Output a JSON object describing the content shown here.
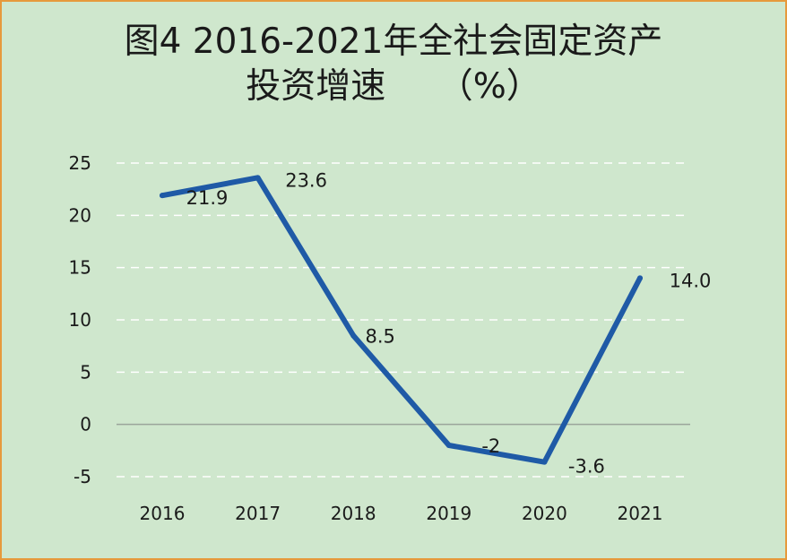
{
  "title_line1": "图4 2016-2021年全社会固定资产",
  "title_line2": "投资增速　　（%）",
  "colors": {
    "line": "#1f5aa6",
    "background": "#cfe7cd",
    "border": "#e69a3c",
    "grid": "#ffffff"
  },
  "chart_data": {
    "type": "line",
    "categories": [
      "2016",
      "2017",
      "2018",
      "2019",
      "2020",
      "2021"
    ],
    "values": [
      21.9,
      23.6,
      8.5,
      -2,
      -3.6,
      14.0
    ],
    "data_labels": [
      "21.9",
      "23.6",
      "8.5",
      "-2",
      "-3.6",
      "14.0"
    ],
    "yticks": [
      "-5",
      "0",
      "5",
      "10",
      "15",
      "20",
      "25"
    ],
    "ylim": [
      -5,
      25
    ],
    "grid": true,
    "legend": "none"
  }
}
